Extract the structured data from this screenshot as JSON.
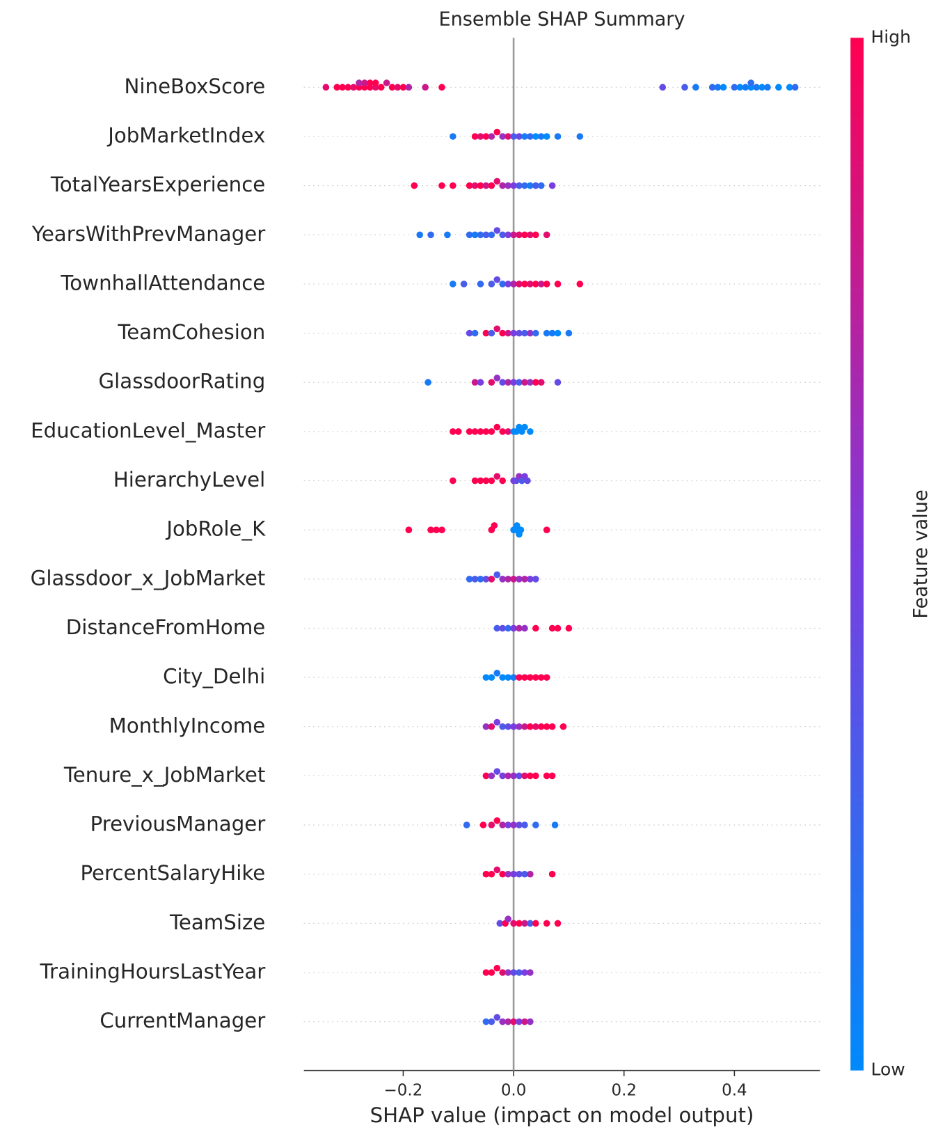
{
  "chart_data": {
    "type": "beeswarm",
    "title": "Ensemble SHAP Summary",
    "xlabel": "SHAP value (impact on model output)",
    "xlim": [
      -0.38,
      0.555
    ],
    "xticks": [
      {
        "value": -0.2,
        "label": "−0.2"
      },
      {
        "value": 0,
        "label": "0.0"
      },
      0.2,
      0.4
    ],
    "colorbar": {
      "label": "Feature value",
      "high": "High",
      "low": "Low",
      "colors": [
        "#008afb",
        "#7a3ddf",
        "#ff0051"
      ]
    },
    "features": [
      {
        "name": "NineBoxScore",
        "shap": [
          -0.34,
          -0.32,
          -0.31,
          -0.3,
          -0.29,
          -0.28,
          -0.28,
          -0.27,
          -0.27,
          -0.26,
          -0.26,
          -0.25,
          -0.25,
          -0.24,
          -0.23,
          -0.22,
          -0.21,
          -0.2,
          -0.19,
          -0.16,
          -0.13,
          0.27,
          0.31,
          0.33,
          0.36,
          0.37,
          0.38,
          0.4,
          0.41,
          0.42,
          0.43,
          0.43,
          0.44,
          0.45,
          0.46,
          0.48,
          0.5,
          0.51
        ],
        "feature_value": [
          0.9,
          1,
          1,
          1,
          0.9,
          1,
          0.7,
          1,
          0.8,
          1,
          1,
          0.9,
          1,
          1,
          0.8,
          1,
          0.9,
          1,
          0.7,
          0.8,
          1,
          0.4,
          0.3,
          0.1,
          0.2,
          0.1,
          0,
          0.2,
          0,
          0.1,
          0,
          0.2,
          0.1,
          0,
          0.1,
          0,
          0,
          0.2
        ]
      },
      {
        "name": "JobMarketIndex",
        "shap": [
          -0.11,
          -0.07,
          -0.06,
          -0.05,
          -0.04,
          -0.03,
          -0.02,
          -0.01,
          0,
          0.01,
          0.02,
          0.03,
          0.04,
          0.05,
          0.06,
          0.08,
          0.12
        ],
        "feature_value": [
          0.1,
          1,
          0.9,
          1,
          0.7,
          1,
          0.6,
          0.9,
          0.3,
          0.4,
          0.1,
          0.2,
          0,
          0.1,
          0,
          0.1,
          0.1
        ]
      },
      {
        "name": "TotalYearsExperience",
        "shap": [
          -0.18,
          -0.13,
          -0.11,
          -0.08,
          -0.07,
          -0.06,
          -0.05,
          -0.04,
          -0.03,
          -0.02,
          -0.01,
          0,
          0.01,
          0.02,
          0.03,
          0.04,
          0.05,
          0.07
        ],
        "feature_value": [
          1,
          1,
          1,
          1,
          0.9,
          1,
          0.8,
          1,
          0.9,
          0.7,
          0.6,
          0.5,
          0.3,
          0.2,
          0.1,
          0.3,
          0.2,
          0.5
        ]
      },
      {
        "name": "YearsWithPrevManager",
        "shap": [
          -0.17,
          -0.15,
          -0.12,
          -0.08,
          -0.07,
          -0.06,
          -0.05,
          -0.04,
          -0.03,
          -0.02,
          -0.01,
          0,
          0.01,
          0.02,
          0.03,
          0.04,
          0.06
        ],
        "feature_value": [
          0.1,
          0.2,
          0.1,
          0.2,
          0.1,
          0.2,
          0.3,
          0.2,
          0.4,
          0.3,
          0.5,
          0.8,
          0.9,
          1,
          0.9,
          1,
          0.9
        ]
      },
      {
        "name": "TownhallAttendance",
        "shap": [
          -0.11,
          -0.09,
          -0.06,
          -0.04,
          -0.03,
          -0.02,
          -0.01,
          0,
          0.01,
          0.02,
          0.03,
          0.04,
          0.05,
          0.06,
          0.08,
          0.12
        ],
        "feature_value": [
          0.1,
          0.3,
          0.2,
          0.3,
          0.4,
          0.2,
          0.5,
          0.7,
          0.9,
          1,
          0.9,
          1,
          0.8,
          1,
          1,
          1
        ]
      },
      {
        "name": "TeamCohesion",
        "shap": [
          -0.08,
          -0.07,
          -0.05,
          -0.04,
          -0.03,
          -0.02,
          -0.01,
          0,
          0.01,
          0.02,
          0.03,
          0.04,
          0.06,
          0.07,
          0.08,
          0.1
        ],
        "feature_value": [
          0.4,
          0.2,
          1,
          0.3,
          0.9,
          1,
          0.8,
          0.5,
          0.4,
          0.3,
          0.6,
          0.2,
          0.1,
          0.1,
          0,
          0.1
        ]
      },
      {
        "name": "GlassdoorRating",
        "shap": [
          -0.155,
          -0.07,
          -0.06,
          -0.04,
          -0.03,
          -0.02,
          -0.01,
          0,
          0.01,
          0.02,
          0.03,
          0.04,
          0.05,
          0.08
        ],
        "feature_value": [
          0.1,
          0.8,
          0.5,
          0.9,
          0.6,
          0.4,
          0.7,
          0.5,
          0.3,
          0.8,
          0.6,
          1,
          0.9,
          0.4
        ]
      },
      {
        "name": "EducationLevel_Master",
        "shap": [
          -0.11,
          -0.1,
          -0.08,
          -0.07,
          -0.06,
          -0.05,
          -0.04,
          -0.03,
          -0.02,
          -0.01,
          0,
          0.005,
          0.01,
          0.015,
          0.02,
          0.03
        ],
        "feature_value": [
          1,
          1,
          1,
          1,
          1,
          1,
          1,
          1,
          1,
          0.9,
          0,
          0,
          0,
          0,
          0,
          0
        ]
      },
      {
        "name": "HierarchyLevel",
        "shap": [
          -0.11,
          -0.07,
          -0.06,
          -0.05,
          -0.04,
          -0.03,
          -0.02,
          0,
          0.005,
          0.01,
          0.015,
          0.02,
          0.025
        ],
        "feature_value": [
          1,
          1,
          1,
          1,
          1,
          0.9,
          1,
          0.5,
          0.4,
          0.6,
          0.3,
          0.5,
          0.4
        ]
      },
      {
        "name": "JobRole_K",
        "shap": [
          -0.19,
          -0.15,
          -0.14,
          -0.13,
          -0.04,
          -0.035,
          0,
          0.003,
          0.006,
          0.01,
          0.013,
          0.06
        ],
        "feature_value": [
          1,
          1,
          1,
          1,
          1,
          1,
          0,
          0,
          0,
          0,
          0,
          1
        ]
      },
      {
        "name": "Glassdoor_x_JobMarket",
        "shap": [
          -0.08,
          -0.07,
          -0.06,
          -0.05,
          -0.04,
          -0.03,
          -0.02,
          -0.01,
          0,
          0.01,
          0.02,
          0.03,
          0.04
        ],
        "feature_value": [
          0.2,
          0.3,
          0.2,
          0.4,
          0.9,
          0.3,
          0.6,
          0.7,
          0.8,
          0.6,
          0.7,
          0.5,
          0.4
        ]
      },
      {
        "name": "DistanceFromHome",
        "shap": [
          -0.03,
          -0.02,
          -0.01,
          0,
          0.01,
          0.02,
          0.04,
          0.07,
          0.08,
          0.1
        ],
        "feature_value": [
          0.3,
          0.4,
          0.2,
          0.5,
          0.7,
          0.6,
          1,
          1,
          1,
          1
        ]
      },
      {
        "name": "City_Delhi",
        "shap": [
          -0.05,
          -0.04,
          -0.03,
          -0.02,
          -0.01,
          0,
          0.01,
          0.02,
          0.03,
          0.04,
          0.05,
          0.06
        ],
        "feature_value": [
          0,
          0,
          0.1,
          0,
          0,
          0.1,
          1,
          1,
          1,
          1,
          1,
          1
        ]
      },
      {
        "name": "MonthlyIncome",
        "shap": [
          -0.05,
          -0.04,
          -0.03,
          -0.02,
          -0.01,
          0,
          0.01,
          0.02,
          0.03,
          0.04,
          0.05,
          0.06,
          0.07,
          0.09
        ],
        "feature_value": [
          0.6,
          0.9,
          0.5,
          0.3,
          0.4,
          0.5,
          0.6,
          0.8,
          1,
          0.9,
          1,
          1,
          1,
          1
        ]
      },
      {
        "name": "Tenure_x_JobMarket",
        "shap": [
          -0.05,
          -0.04,
          -0.03,
          -0.02,
          -0.01,
          0,
          0.01,
          0.02,
          0.03,
          0.04,
          0.06,
          0.07
        ],
        "feature_value": [
          1,
          0.6,
          0.4,
          0.5,
          0.7,
          0.6,
          0.4,
          0.9,
          1,
          1,
          1,
          1
        ]
      },
      {
        "name": "PreviousManager",
        "shap": [
          -0.085,
          -0.055,
          -0.04,
          -0.03,
          -0.02,
          -0.01,
          0,
          0.01,
          0.02,
          0.04,
          0.075
        ],
        "feature_value": [
          0.2,
          1,
          0.9,
          1,
          0.7,
          0.5,
          0.6,
          0.4,
          0.3,
          0.2,
          0.1
        ]
      },
      {
        "name": "PercentSalaryHike",
        "shap": [
          -0.05,
          -0.04,
          -0.03,
          -0.02,
          -0.01,
          0,
          0.01,
          0.02,
          0.03,
          0.07
        ],
        "feature_value": [
          1,
          1,
          0.9,
          1,
          0.6,
          0.5,
          0.4,
          0.3,
          0.7,
          1
        ]
      },
      {
        "name": "TeamSize",
        "shap": [
          -0.025,
          -0.015,
          -0.01,
          0,
          0.01,
          0.02,
          0.03,
          0.04,
          0.06,
          0.08
        ],
        "feature_value": [
          0.4,
          1,
          0.6,
          0.9,
          1,
          0.8,
          0.3,
          1,
          1,
          1
        ]
      },
      {
        "name": "TrainingHoursLastYear",
        "shap": [
          -0.05,
          -0.04,
          -0.03,
          -0.02,
          -0.01,
          0,
          0.01,
          0.02,
          0.03
        ],
        "feature_value": [
          1,
          1,
          1,
          0.9,
          0.6,
          0.4,
          0.3,
          0.5,
          0.6
        ]
      },
      {
        "name": "CurrentManager",
        "shap": [
          -0.05,
          -0.04,
          -0.03,
          -0.02,
          -0.01,
          0,
          0.01,
          0.02,
          0.03
        ],
        "feature_value": [
          0.2,
          0.3,
          0.4,
          0.6,
          0.7,
          0.9,
          0.5,
          0.8,
          0.6
        ]
      }
    ]
  }
}
